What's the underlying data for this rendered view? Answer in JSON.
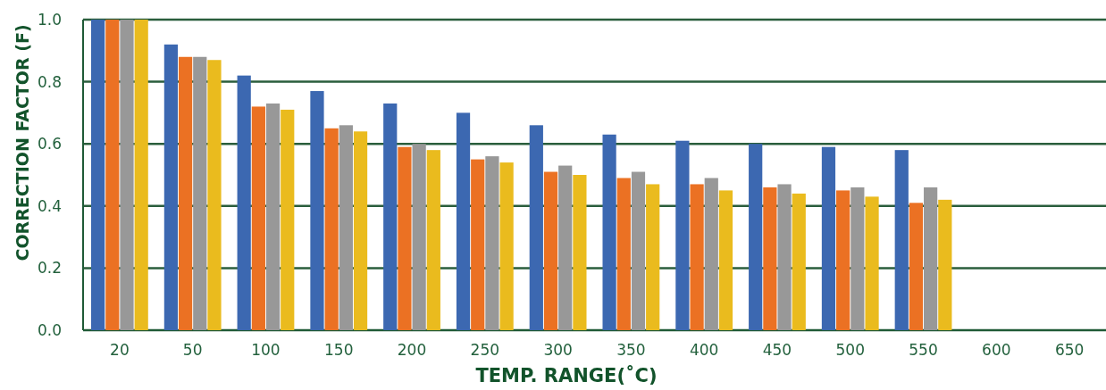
{
  "chart_data": {
    "type": "bar",
    "xlabel": "TEMP. RANGE(˚C)",
    "ylabel": "CORRECTION FACTOR (F)",
    "categories": [
      "20",
      "50",
      "100",
      "150",
      "200",
      "250",
      "300",
      "350",
      "400",
      "450",
      "500",
      "550",
      "600",
      "650"
    ],
    "series": [
      {
        "color": "#3c68b1",
        "values": [
          1.0,
          0.92,
          0.82,
          0.77,
          0.73,
          0.7,
          0.66,
          0.63,
          0.61,
          0.6,
          0.59,
          0.58,
          null,
          null
        ]
      },
      {
        "color": "#eb7123",
        "values": [
          1.0,
          0.88,
          0.72,
          0.65,
          0.59,
          0.55,
          0.51,
          0.49,
          0.47,
          0.46,
          0.45,
          0.41,
          null,
          null
        ]
      },
      {
        "color": "#989898",
        "values": [
          1.0,
          0.88,
          0.73,
          0.66,
          0.6,
          0.56,
          0.53,
          0.51,
          0.49,
          0.47,
          0.46,
          0.46,
          null,
          null
        ]
      },
      {
        "color": "#eabb1e",
        "values": [
          1.0,
          0.87,
          0.71,
          0.64,
          0.58,
          0.54,
          0.5,
          0.47,
          0.45,
          0.44,
          0.43,
          0.42,
          null,
          null
        ]
      }
    ],
    "ylim": [
      0,
      1
    ],
    "yticks": [
      {
        "value": 0,
        "label": "0.0"
      },
      0.2,
      0.4,
      0.6,
      0.8,
      {
        "value": 1,
        "label": "1.0"
      }
    ],
    "grid": "y"
  }
}
